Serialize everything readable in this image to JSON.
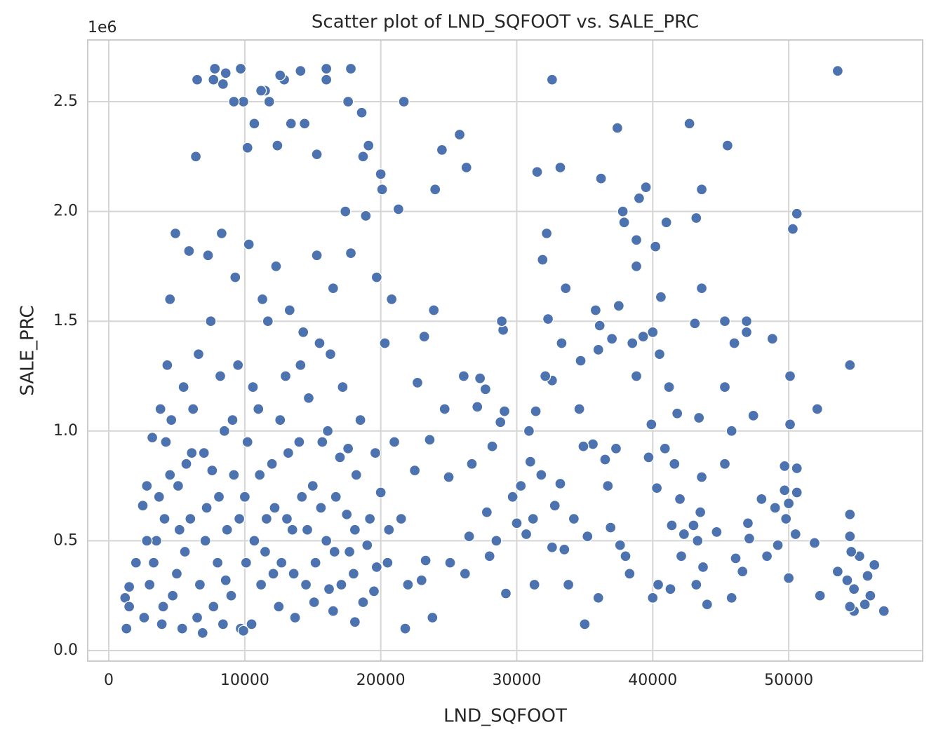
{
  "chart_data": {
    "type": "scatter",
    "title": "Scatter plot of LND_SQFOOT vs. SALE_PRC",
    "x_label": "LND_SQFOOT",
    "y_label": "SALE_PRC",
    "y_scale_label": "1e6",
    "color": "#4c72b0",
    "grid": true,
    "xlim": [
      -1550,
      59850
    ],
    "ylim": [
      -0.048,
      2.781
    ],
    "xticks": [
      0,
      10000,
      20000,
      30000,
      40000,
      50000
    ],
    "yticks": [
      {
        "value": 0,
        "label": "0.0"
      },
      0.5,
      {
        "value": 1,
        "label": "1.0"
      },
      1.5,
      {
        "value": 2,
        "label": "2.0"
      },
      2.5
    ],
    "x": [
      57000,
      56300,
      56000,
      55800,
      55600,
      55200,
      54800,
      54800,
      54600,
      54500,
      54500,
      54500,
      54500,
      54300,
      53600,
      53600,
      52300,
      52100,
      51900,
      50600,
      50600,
      50500,
      50600,
      50300,
      50100,
      50100,
      50000,
      50000,
      49800,
      49700,
      49700,
      49200,
      49000,
      48800,
      48400,
      48000,
      47400,
      47100,
      47000,
      46900,
      46900,
      46600,
      46100,
      46000,
      45800,
      45800,
      45500,
      45300,
      45300,
      45300,
      44700,
      44000,
      43700,
      43600,
      43600,
      43600,
      43500,
      43400,
      43300,
      43200,
      43200,
      43100,
      43000,
      42700,
      42300,
      42100,
      42000,
      41800,
      41600,
      41400,
      41300,
      41200,
      41000,
      40900,
      40600,
      40500,
      40400,
      40300,
      40200,
      40000,
      40000,
      39900,
      39700,
      39500,
      39300,
      39000,
      38800,
      38800,
      38800,
      38500,
      38300,
      38000,
      37900,
      37800,
      37600,
      37500,
      37400,
      37300,
      37000,
      36900,
      36700,
      36500,
      36200,
      36100,
      36000,
      36000,
      35800,
      35600,
      35200,
      35000,
      34900,
      34700,
      34600,
      34200,
      33800,
      33600,
      33500,
      33300,
      33200,
      33200,
      32800,
      32600,
      32600,
      32600,
      32300,
      32200,
      32100,
      31900,
      31800,
      31500,
      31400,
      31300,
      31200,
      31000,
      30900,
      30700,
      30300,
      30000,
      29700,
      29200,
      29100,
      29000,
      28900,
      28800,
      28500,
      28200,
      28000,
      27800,
      27700,
      27300,
      27100,
      26700,
      26500,
      26300,
      26200,
      26100,
      25800,
      25100,
      25000,
      24700,
      24500,
      24000,
      23900,
      23800,
      23600,
      23300,
      23200,
      23000,
      22700,
      21800,
      21700,
      21300,
      20800,
      20600,
      20300,
      20100,
      20000,
      19700,
      19600,
      19100,
      18900,
      18700,
      18600,
      18100,
      17800,
      17800,
      17600,
      17400,
      16500,
      16000,
      16000,
      15300,
      14400,
      14100,
      13400,
      12900,
      12600,
      12400,
      11800,
      11500,
      11200,
      10700,
      10200,
      9900,
      9700,
      9200,
      8600,
      8400,
      7800,
      7700,
      6500,
      6400,
      5900,
      4900,
      4500,
      4300,
      3800,
      3200,
      2800,
      2500,
      2000,
      1500,
      1200,
      1300,
      1500,
      3000,
      3500,
      4000,
      4500,
      5000,
      5500,
      6000,
      6500,
      7000,
      7500,
      8000,
      8500,
      9000,
      9500,
      10000,
      10500,
      11000,
      11500,
      12000,
      12500,
      13000,
      13500,
      14000,
      14500,
      15000,
      15500,
      16000,
      16500,
      17000,
      17500,
      18000,
      18500,
      19000,
      19500,
      20000,
      20500,
      21000,
      21500,
      22000,
      22500,
      2600,
      3300,
      3700,
      4200,
      4700,
      5200,
      5700,
      6200,
      6700,
      7200,
      7700,
      8200,
      8700,
      9200,
      9700,
      10200,
      10700,
      11200,
      11700,
      12200,
      12700,
      13200,
      13700,
      14200,
      14700,
      15200,
      15700,
      16200,
      16700,
      17200,
      17700,
      18200,
      18700,
      19200,
      19700,
      3900,
      5400,
      6900,
      8400,
      9900,
      2800,
      4100,
      4600,
      5100,
      5600,
      6100,
      6600,
      7100,
      7600,
      8100,
      8600,
      9100,
      9600,
      10100,
      10600,
      11100,
      11600,
      12100,
      12600,
      13100,
      13600,
      14100,
      14600,
      15100,
      15600,
      16100,
      16600,
      17100,
      17600,
      18100,
      7300,
      8300,
      9300,
      10300,
      11300,
      12300,
      13300,
      14300,
      15300,
      16300
    ],
    "values": [
      0.18,
      0.39,
      0.25,
      0.34,
      0.21,
      0.43,
      0.18,
      0.28,
      0.45,
      0.52,
      0.62,
      1.3,
      0.2,
      0.32,
      2.64,
      0.36,
      0.25,
      1.1,
      0.49,
      0.83,
      0.72,
      0.53,
      1.99,
      1.92,
      1.03,
      1.25,
      0.67,
      0.33,
      0.6,
      0.84,
      0.73,
      0.48,
      0.65,
      1.42,
      0.43,
      0.69,
      1.07,
      0.51,
      0.58,
      1.5,
      1.45,
      0.36,
      0.42,
      1.4,
      0.24,
      1.0,
      2.3,
      0.85,
      1.5,
      1.2,
      0.54,
      0.21,
      0.38,
      2.1,
      1.65,
      0.79,
      0.63,
      1.06,
      0.5,
      0.3,
      1.97,
      1.49,
      0.57,
      2.4,
      0.53,
      0.43,
      0.69,
      1.08,
      0.85,
      0.57,
      0.28,
      1.2,
      1.95,
      0.92,
      1.61,
      1.35,
      0.3,
      0.74,
      1.84,
      1.45,
      0.24,
      1.03,
      0.88,
      2.11,
      1.43,
      2.06,
      1.87,
      1.75,
      1.25,
      1.4,
      0.35,
      0.43,
      1.95,
      2.0,
      0.48,
      1.57,
      2.38,
      0.92,
      1.42,
      0.56,
      0.75,
      0.87,
      2.15,
      1.48,
      0.24,
      1.37,
      1.55,
      0.94,
      0.52,
      0.12,
      0.93,
      1.32,
      1.1,
      0.6,
      0.3,
      1.65,
      0.46,
      1.4,
      2.2,
      0.76,
      0.66,
      1.23,
      0.47,
      2.6,
      1.51,
      1.9,
      1.25,
      1.78,
      0.8,
      2.18,
      1.09,
      0.3,
      0.6,
      0.86,
      1.0,
      0.53,
      0.75,
      0.58,
      0.7,
      0.26,
      1.09,
      1.46,
      1.5,
      1.04,
      0.5,
      0.93,
      0.43,
      0.63,
      1.19,
      1.24,
      1.11,
      0.85,
      0.52,
      2.2,
      0.35,
      1.25,
      2.35,
      0.4,
      0.79,
      1.1,
      2.28,
      2.1,
      1.55,
      0.15,
      0.96,
      0.41,
      1.43,
      0.32,
      1.22,
      0.1,
      2.5,
      2.01,
      1.6,
      0.55,
      1.4,
      2.1,
      2.17,
      1.7,
      0.9,
      2.3,
      1.98,
      2.25,
      2.45,
      0.13,
      2.65,
      1.81,
      2.5,
      2.0,
      1.65,
      2.65,
      2.6,
      2.26,
      2.4,
      2.64,
      2.4,
      2.6,
      2.62,
      2.3,
      2.5,
      2.55,
      2.55,
      2.4,
      2.29,
      2.5,
      2.65,
      2.5,
      2.63,
      2.58,
      2.65,
      2.6,
      2.6,
      2.25,
      1.82,
      1.9,
      1.6,
      1.3,
      1.1,
      0.97,
      0.75,
      0.66,
      0.4,
      0.29,
      0.24,
      0.1,
      0.2,
      0.3,
      0.5,
      0.2,
      0.8,
      0.35,
      1.2,
      0.6,
      0.15,
      0.9,
      1.5,
      0.4,
      1.0,
      0.25,
      1.3,
      0.7,
      0.12,
      1.1,
      0.45,
      0.85,
      0.2,
      1.25,
      0.55,
      0.95,
      0.3,
      0.75,
      1.4,
      0.5,
      0.18,
      0.88,
      0.62,
      0.35,
      1.05,
      0.48,
      0.27,
      0.72,
      0.4,
      0.95,
      0.6,
      0.3,
      0.82,
      0.15,
      0.4,
      0.7,
      0.95,
      0.25,
      0.55,
      0.85,
      1.1,
      0.3,
      0.65,
      0.2,
      1.25,
      0.55,
      0.8,
      0.1,
      0.95,
      0.5,
      0.3,
      1.5,
      0.65,
      0.4,
      0.9,
      0.15,
      0.7,
      1.15,
      0.4,
      0.95,
      0.28,
      0.7,
      1.2,
      0.45,
      0.8,
      0.22,
      0.6,
      0.38,
      0.12,
      0.1,
      0.08,
      0.12,
      0.09,
      0.5,
      0.6,
      1.05,
      0.75,
      0.45,
      0.9,
      1.35,
      0.5,
      0.82,
      0.7,
      0.32,
      1.05,
      0.6,
      0.4,
      1.2,
      0.8,
      0.6,
      0.35,
      1.05,
      0.6,
      0.35,
      1.3,
      0.55,
      0.22,
      0.65,
      1.0,
      0.45,
      0.3,
      0.92,
      0.55,
      1.8,
      1.9,
      1.7,
      1.85,
      1.6,
      1.75,
      1.55,
      1.45,
      1.8,
      1.35
    ]
  }
}
